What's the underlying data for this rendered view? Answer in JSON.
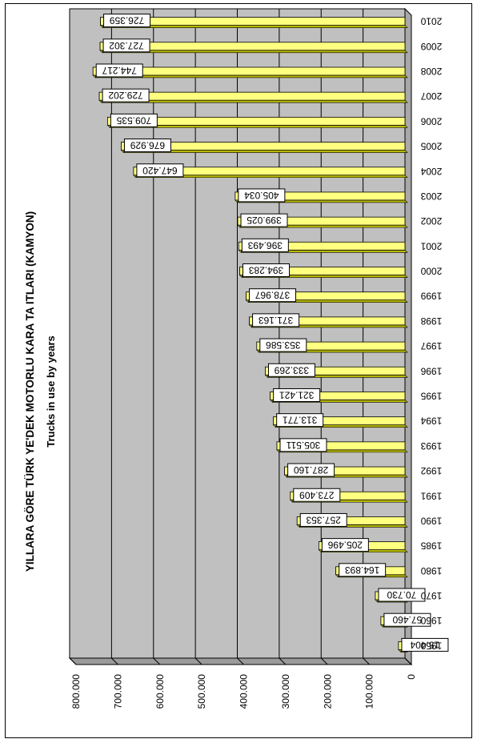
{
  "chart_data": {
    "type": "bar",
    "orientation": "horizontal, rotated 180 degrees (3D style)",
    "title": "YILLARA GÖRE TÜRK YE'DEK MOTORLU KARA TA  ITLARI (KAMYON)",
    "subtitle": "Trucks in use by years",
    "categories": [
      "1950",
      "1960",
      "1970",
      "1980",
      "1985",
      "1990",
      "1991",
      "1992",
      "1993",
      "1994",
      "1995",
      "1996",
      "1997",
      "1998",
      "1999",
      "2000",
      "2001",
      "2002",
      "2003",
      "2004",
      "2005",
      "2006",
      "2007",
      "2008",
      "2009",
      "2010"
    ],
    "values": [
      15404,
      57460,
      70730,
      164893,
      205496,
      257353,
      273409,
      287160,
      305511,
      313771,
      321421,
      333269,
      353586,
      371163,
      378967,
      394283,
      396493,
      399025,
      405034,
      647420,
      676929,
      709535,
      729202,
      744217,
      727302,
      726359
    ],
    "value_labels": [
      "15.404",
      "57.460",
      "70.730",
      "164.893",
      "205.496",
      "257.353",
      "273.409",
      "287.160",
      "305.511",
      "313.771",
      "321.421",
      "333.269",
      "353.586",
      "371.163",
      "378.967",
      "394.283",
      "396.493",
      "399.025",
      "405.034",
      "647.420",
      "676.929",
      "709.535",
      "729.202",
      "744.217",
      "727.302",
      "726.359"
    ],
    "axis_ticks": [
      "0",
      "100.000",
      "200.000",
      "300.000",
      "400.000",
      "500.000",
      "600.000",
      "700.000",
      "800.000"
    ],
    "ylim": [
      0,
      800000
    ],
    "grid": true,
    "bar_color": "#ffff80",
    "bar_dark_color": "#b8b800",
    "wall_color": "#c0c0c0"
  }
}
